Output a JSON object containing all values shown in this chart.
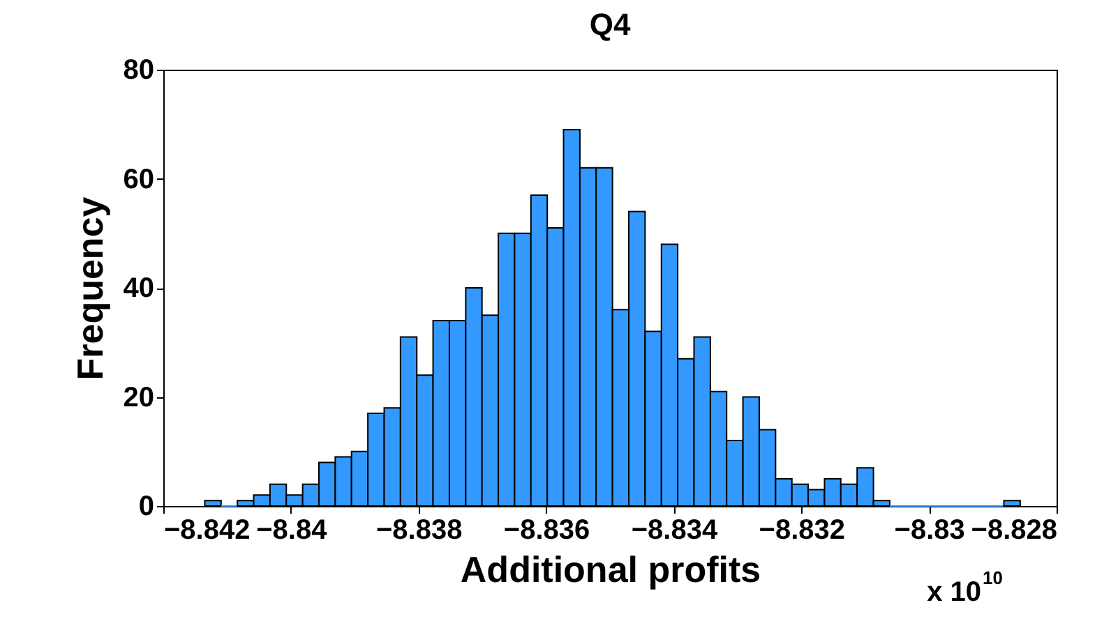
{
  "chart_data": {
    "type": "histogram",
    "title": "Q4",
    "xlabel": "Additional profits",
    "ylabel": "Frequency",
    "annotations": [
      "x 10$^{10}$"
    ],
    "bins": [
      -8.84135,
      -8.841094,
      -8.840839,
      -8.840583,
      -8.840328,
      -8.840072,
      -8.839816,
      -8.839561,
      -8.839305,
      -8.83905,
      -8.838794,
      -8.838538,
      -8.838283,
      -8.838027,
      -8.837772,
      -8.837516,
      -8.83726,
      -8.837005,
      -8.836749,
      -8.836494,
      -8.836238,
      -8.835982,
      -8.835727,
      -8.835471,
      -8.835216,
      -8.83496,
      -8.834704,
      -8.834449,
      -8.834193,
      -8.833938,
      -8.833682,
      -8.833426,
      -8.833171,
      -8.832915,
      -8.83266,
      -8.832404,
      -8.832148,
      -8.831893,
      -8.831637,
      -8.831382,
      -8.831126,
      -8.83087,
      -8.830615,
      -8.830359,
      -8.830104,
      -8.829848,
      -8.829592,
      -8.829337,
      -8.829081,
      -8.828826,
      -8.82857
    ],
    "values": [
      1,
      0,
      1,
      2,
      4,
      2,
      4,
      8,
      9,
      10,
      17,
      18,
      31,
      24,
      34,
      34,
      40,
      35,
      50,
      50,
      57,
      51,
      69,
      62,
      62,
      36,
      54,
      32,
      48,
      27,
      31,
      21,
      12,
      20,
      14,
      5,
      4,
      3,
      5,
      4,
      7,
      1,
      0,
      0,
      0,
      0,
      0,
      0,
      0,
      1
    ],
    "color": "#3399ff",
    "xlim": [
      -8.842,
      -8.828
    ],
    "xticks": [
      -8.842,
      -8.84,
      -8.838,
      -8.836,
      -8.834,
      -8.832,
      -8.83,
      -8.828
    ],
    "ylim": [
      0,
      80
    ],
    "yticks": [
      0,
      20,
      40,
      60,
      80
    ],
    "grid": false
  }
}
